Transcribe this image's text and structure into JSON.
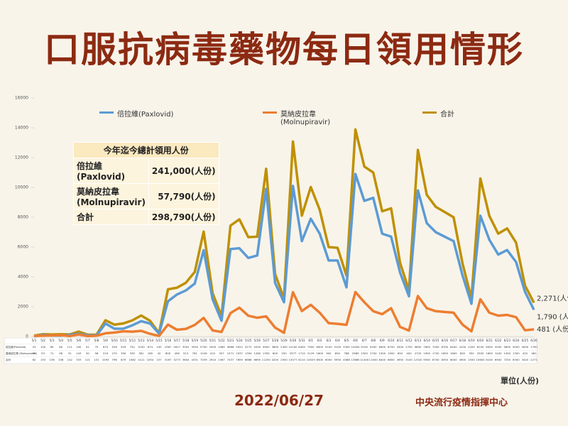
{
  "header": {
    "title": "口服抗病毒藥物每日領用情形"
  },
  "chart_data": {
    "type": "line",
    "categories": [
      "5/1",
      "5/2",
      "5/3",
      "5/4",
      "5/5",
      "5/6",
      "5/7",
      "5/8",
      "5/9",
      "5/10",
      "5/11",
      "5/12",
      "5/13",
      "5/14",
      "5/15",
      "5/16",
      "5/17",
      "5/18",
      "5/19",
      "5/20",
      "5/21",
      "5/22",
      "5/23",
      "5/24",
      "5/25",
      "5/26",
      "5/27",
      "5/28",
      "5/29",
      "5/30",
      "5/31",
      "6/1",
      "6/2",
      "6/3",
      "6/4",
      "6/5",
      "6/6",
      "6/7",
      "6/8",
      "6/9",
      "6/10",
      "6/11",
      "6/12",
      "6/13",
      "6/14",
      "6/15",
      "6/16",
      "6/17",
      "6/18",
      "6/19",
      "6/20",
      "6/21",
      "6/22",
      "6/23",
      "6/24",
      "6/25",
      "6/26"
    ],
    "series": [
      {
        "name": "倍拉維(Paxlovid)",
        "color": "#5b9bd5",
        "values": [
          23,
          100,
          65,
          60,
          111,
          190,
          91,
          75,
          874,
          526,
          529,
          752,
          1030,
          874,
          195,
          2367,
          2817,
          3091,
          3550,
          5790,
          2500,
          1060,
          5866,
          5922,
          5272,
          5435,
          9900,
          3600,
          2300,
          10100,
          6400,
          7900,
          6900,
          5100,
          5100,
          3300,
          10900,
          9100,
          9300,
          6900,
          6700,
          4300,
          2700,
          9800,
          7600,
          7000,
          6700,
          6400,
          4100,
          2200,
          8100,
          6500,
          5500,
          5800,
          5000,
          3000,
          1790
        ]
      },
      {
        "name": "莫納皮拉韋 (Molnupiravir)",
        "color": "#ed7d31",
        "values": [
          39,
          53,
          71,
          96,
          31,
          143,
          30,
          56,
          219,
          270,
          350,
          330,
          381,
          180,
          42,
          800,
          456,
          513,
          781,
          1249,
          410,
          307,
          1571,
          1937,
          1394,
          1260,
          1350,
          600,
          250,
          2977,
          1710,
          2129,
          1600,
          900,
          850,
          788,
          2985,
          2300,
          1700,
          1500,
          1900,
          650,
          400,
          2720,
          1900,
          1700,
          1650,
          1600,
          800,
          350,
          2500,
          1600,
          1400,
          1450,
          1300,
          420,
          481
        ]
      },
      {
        "name": "合計",
        "color": "#bf9000",
        "values": [
          62,
          153,
          136,
          156,
          142,
          333,
          121,
          131,
          1093,
          796,
          879,
          1082,
          1411,
          1054,
          237,
          3167,
          3273,
          3604,
          4331,
          7039,
          2910,
          1367,
          7437,
          7859,
          6666,
          6695,
          11250,
          4200,
          2550,
          13077,
          8110,
          10029,
          8500,
          6000,
          5950,
          4088,
          13885,
          11400,
          11000,
          8400,
          8600,
          4950,
          3100,
          12520,
          9500,
          8700,
          8350,
          8000,
          4900,
          2550,
          10600,
          8100,
          6900,
          7250,
          6300,
          3420,
          2271
        ]
      }
    ],
    "annotations": [
      "1,790 (人份)",
      "481 (人份)",
      "2,271(人份)"
    ],
    "ylim": [
      0,
      16000
    ],
    "yticks": [
      0,
      2000,
      4000,
      6000,
      8000,
      10000,
      12000,
      14000,
      16000
    ],
    "unit_label": "單位(人份)"
  },
  "summary": {
    "title": "今年迄今總計領用人份",
    "rows": [
      [
        "倍拉維 (Paxlovid)",
        "241,000(人份)"
      ],
      [
        "莫納皮拉韋 (Molnupiravir)",
        "57,790(人份)"
      ],
      [
        "合計",
        "298,790(人份)"
      ]
    ]
  },
  "footer": {
    "date": "2022/06/27",
    "source": "中央流行疫情指揮中心"
  }
}
